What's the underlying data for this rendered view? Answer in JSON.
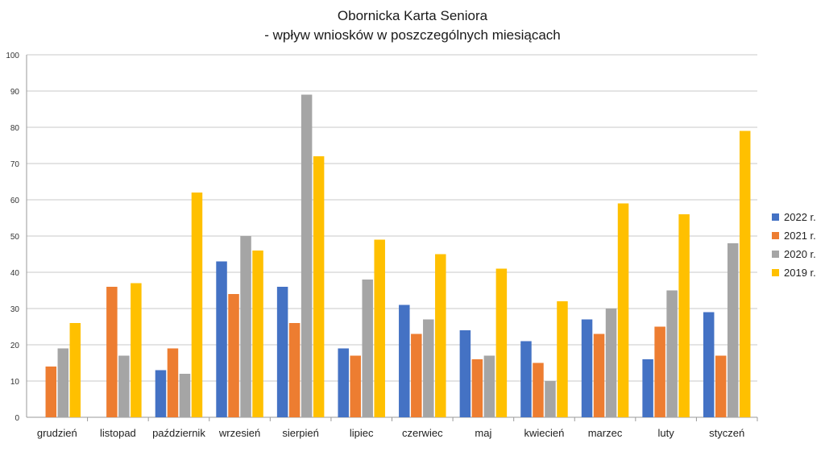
{
  "chart_data": {
    "type": "bar",
    "title": "Obornicka Karta Seniora",
    "subtitle": "- wpływ wniosków w poszczególnych miesiącach",
    "xlabel": "",
    "ylabel": "",
    "ylim": [
      0,
      100
    ],
    "yticks": [
      "0",
      "10",
      "20",
      "30",
      "40",
      "50",
      "60",
      "70",
      "80",
      "90",
      "100"
    ],
    "grid": true,
    "legend_position": "right",
    "categories": [
      "grudzień",
      "listopad",
      "październik",
      "wrzesień",
      "sierpień",
      "lipiec",
      "czerwiec",
      "maj",
      "kwiecień",
      "marzec",
      "luty",
      "styczeń"
    ],
    "series": [
      {
        "name": "2022 r.",
        "color": "#4472c4",
        "values": [
          0,
          0,
          13,
          43,
          36,
          19,
          31,
          24,
          21,
          27,
          16,
          29
        ]
      },
      {
        "name": "2021 r.",
        "color": "#ed7d31",
        "values": [
          14,
          36,
          19,
          34,
          26,
          17,
          23,
          16,
          15,
          23,
          25,
          17
        ]
      },
      {
        "name": "2020 r.",
        "color": "#a5a5a5",
        "values": [
          19,
          17,
          12,
          50,
          89,
          38,
          27,
          17,
          10,
          30,
          35,
          48
        ]
      },
      {
        "name": "2019 r.",
        "color": "#ffc000",
        "values": [
          26,
          37,
          62,
          46,
          72,
          49,
          45,
          41,
          32,
          59,
          56,
          79
        ]
      }
    ]
  }
}
